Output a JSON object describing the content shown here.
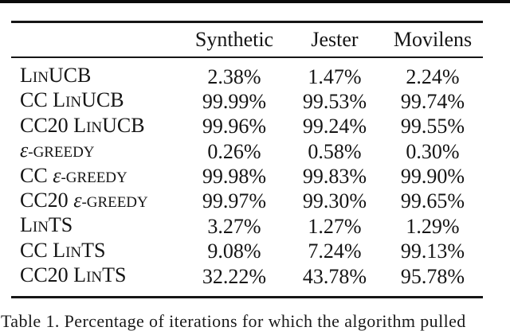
{
  "page": {
    "background": "#ffffff",
    "text_color": "#151515",
    "rule_color": "#161616"
  },
  "chart_data": {
    "type": "table",
    "title": "",
    "columns": [
      "Synthetic",
      "Jester",
      "Movilens"
    ],
    "row_labels": [
      "LinUCB",
      "CC LinUCB",
      "CC20 LinUCB",
      "ε-greedy",
      "CC ε-greedy",
      "CC20 ε-greedy",
      "LinTS",
      "CC LinTS",
      "CC20 LinTS"
    ],
    "values_percent": [
      [
        2.38,
        1.47,
        2.24
      ],
      [
        99.99,
        99.53,
        99.74
      ],
      [
        99.96,
        99.24,
        99.55
      ],
      [
        0.26,
        0.58,
        0.3
      ],
      [
        99.98,
        99.83,
        99.9
      ],
      [
        99.97,
        99.3,
        99.65
      ],
      [
        3.27,
        1.27,
        1.29
      ],
      [
        9.08,
        7.24,
        99.13
      ],
      [
        32.22,
        43.78,
        95.78
      ]
    ]
  },
  "table": {
    "columns": [
      "Synthetic",
      "Jester",
      "Movilens"
    ],
    "rows": [
      {
        "label_parts": [
          {
            "text": "L",
            "small": false
          },
          {
            "text": "IN",
            "small": true
          },
          {
            "text": "UCB",
            "small": false
          }
        ],
        "values": [
          "2.38%",
          "1.47%",
          "2.24%"
        ]
      },
      {
        "label_parts": [
          {
            "text": "CC L",
            "small": false
          },
          {
            "text": "IN",
            "small": true
          },
          {
            "text": "UCB",
            "small": false
          }
        ],
        "values": [
          "99.99%",
          "99.53%",
          "99.74%"
        ]
      },
      {
        "label_parts": [
          {
            "text": "CC20 L",
            "small": false
          },
          {
            "text": "IN",
            "small": true
          },
          {
            "text": "UCB",
            "small": false
          }
        ],
        "values": [
          "99.96%",
          "99.24%",
          "99.55%"
        ]
      },
      {
        "label_parts": [
          {
            "text": "ε",
            "small": false,
            "italic": true
          },
          {
            "text": "-GREEDY",
            "small": true
          }
        ],
        "values": [
          "0.26%",
          "0.58%",
          "0.30%"
        ]
      },
      {
        "label_parts": [
          {
            "text": "CC ",
            "small": false
          },
          {
            "text": "ε",
            "small": false,
            "italic": true
          },
          {
            "text": "-GREEDY",
            "small": true
          }
        ],
        "values": [
          "99.98%",
          "99.83%",
          "99.90%"
        ]
      },
      {
        "label_parts": [
          {
            "text": "CC20 ",
            "small": false
          },
          {
            "text": "ε",
            "small": false,
            "italic": true
          },
          {
            "text": "-GREEDY",
            "small": true
          }
        ],
        "values": [
          "99.97%",
          "99.30%",
          "99.65%"
        ]
      },
      {
        "label_parts": [
          {
            "text": "L",
            "small": false
          },
          {
            "text": "IN",
            "small": true
          },
          {
            "text": "TS",
            "small": false
          }
        ],
        "values": [
          "3.27%",
          "1.27%",
          "1.29%"
        ]
      },
      {
        "label_parts": [
          {
            "text": "CC L",
            "small": false
          },
          {
            "text": "IN",
            "small": true
          },
          {
            "text": "TS",
            "small": false
          }
        ],
        "values": [
          "9.08%",
          "7.24%",
          "99.13%"
        ]
      },
      {
        "label_parts": [
          {
            "text": "CC20 L",
            "small": false
          },
          {
            "text": "IN",
            "small": true
          },
          {
            "text": "TS",
            "small": false
          }
        ],
        "values": [
          "32.22%",
          "43.78%",
          "95.78%"
        ]
      }
    ]
  },
  "caption": {
    "text": "Table 1. Percentage of iterations for which the algorithm pulled"
  }
}
